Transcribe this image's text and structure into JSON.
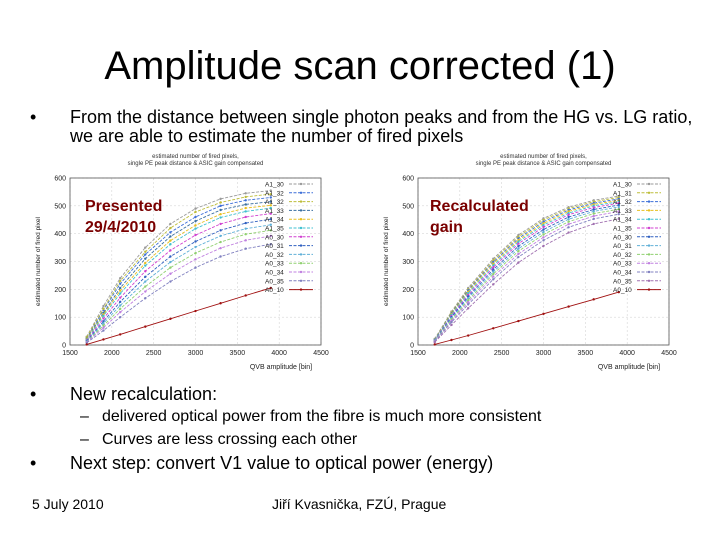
{
  "slide": {
    "title": "Amplitude scan corrected (1)",
    "bullet1": "From the distance between single photon peaks and from the HG vs. LG ratio, we are able to estimate the number of fired pixels",
    "bullet2": "New recalculation:",
    "sub1": "delivered optical power from the fibre is much more consistent",
    "sub2": "Curves are less crossing each other",
    "bullet3": "Next step: convert V1 value to optical power (energy)",
    "footer_date": "5 July 2010",
    "footer_author": "Jiří Kvasnička, FZÚ, Prague",
    "bullet_char": "•",
    "dash_char": "–"
  },
  "chart_data": [
    {
      "type": "line",
      "title": "estimated number of fired pixels, single PE peak distance & ASIC gain compensated",
      "annotation": "Presented 29/4/2010",
      "xlabel": "QVB amplitude [bin]",
      "ylabel": "estimated number of fired pixel",
      "xlim": [
        1500,
        4500
      ],
      "ylim": [
        0,
        600
      ],
      "xticks": [
        1500,
        2000,
        2500,
        3000,
        3500,
        4000,
        4500
      ],
      "yticks": [
        0,
        100,
        200,
        300,
        400,
        500,
        600
      ],
      "grid": true,
      "legend_position": "top-right",
      "series": [
        {
          "name": "A1_30",
          "color": "#9a9a9a",
          "x": [
            1700,
            1900,
            2100,
            2400,
            2700,
            3000,
            3300,
            3600,
            3900
          ],
          "y": [
            30,
            140,
            240,
            350,
            435,
            490,
            525,
            545,
            555
          ]
        },
        {
          "name": "A1_32",
          "color": "#3d6fd8",
          "x": [
            1700,
            1900,
            2100,
            2400,
            2700,
            3000,
            3300,
            3600,
            3900
          ],
          "y": [
            25,
            125,
            220,
            325,
            405,
            460,
            500,
            520,
            530
          ]
        },
        {
          "name": "A1_32",
          "color": "#bdbd3a",
          "x": [
            1700,
            1900,
            2100,
            2400,
            2700,
            3000,
            3300,
            3600,
            3900
          ],
          "y": [
            28,
            130,
            230,
            335,
            420,
            478,
            512,
            532,
            542
          ]
        },
        {
          "name": "A1_33",
          "color": "#3a6fa0",
          "x": [
            1700,
            1900,
            2100,
            2400,
            2700,
            3000,
            3300,
            3600,
            3900
          ],
          "y": [
            22,
            115,
            205,
            310,
            390,
            445,
            485,
            505,
            515
          ]
        },
        {
          "name": "A1_34",
          "color": "#e8c020",
          "x": [
            1700,
            1900,
            2100,
            2400,
            2700,
            3000,
            3300,
            3600,
            3900
          ],
          "y": [
            20,
            110,
            195,
            295,
            375,
            430,
            470,
            492,
            502
          ]
        },
        {
          "name": "A1_35",
          "color": "#40c0d0",
          "x": [
            1700,
            1900,
            2100,
            2400,
            2700,
            3000,
            3300,
            3600,
            3900
          ],
          "y": [
            18,
            105,
            185,
            285,
            362,
            418,
            458,
            480,
            492
          ]
        },
        {
          "name": "A0_30",
          "color": "#d040d0",
          "x": [
            1700,
            1900,
            2100,
            2400,
            2700,
            3000,
            3300,
            3600,
            3900
          ],
          "y": [
            16,
            95,
            170,
            265,
            340,
            395,
            435,
            460,
            472
          ]
        },
        {
          "name": "A0_31",
          "color": "#3060c0",
          "x": [
            1700,
            1900,
            2100,
            2400,
            2700,
            3000,
            3300,
            3600,
            3900
          ],
          "y": [
            14,
            85,
            155,
            245,
            318,
            372,
            412,
            438,
            452
          ]
        },
        {
          "name": "A0_32",
          "color": "#60b0d8",
          "x": [
            1700,
            1900,
            2100,
            2400,
            2700,
            3000,
            3300,
            3600,
            3900
          ],
          "y": [
            12,
            78,
            142,
            228,
            298,
            352,
            392,
            418,
            432
          ]
        },
        {
          "name": "A0_33",
          "color": "#90d070",
          "x": [
            1700,
            1900,
            2100,
            2400,
            2700,
            3000,
            3300,
            3600,
            3900
          ],
          "y": [
            11,
            70,
            130,
            210,
            278,
            330,
            370,
            398,
            412
          ]
        },
        {
          "name": "A0_34",
          "color": "#c080e0",
          "x": [
            1700,
            1900,
            2100,
            2400,
            2700,
            3000,
            3300,
            3600,
            3900
          ],
          "y": [
            10,
            62,
            118,
            192,
            256,
            308,
            348,
            376,
            392
          ]
        },
        {
          "name": "A0_35",
          "color": "#8080c0",
          "x": [
            1700,
            1900,
            2100,
            2400,
            2700,
            3000,
            3300,
            3600,
            3900
          ],
          "y": [
            8,
            52,
            100,
            168,
            228,
            278,
            318,
            346,
            362
          ]
        },
        {
          "name": "A0_10",
          "color": "#a01010",
          "x": [
            1700,
            1900,
            2100,
            2400,
            2700,
            3000,
            3300,
            3600,
            3900
          ],
          "y": [
            2,
            20,
            38,
            66,
            94,
            122,
            150,
            178,
            205
          ]
        }
      ]
    },
    {
      "type": "line",
      "title": "estimated number of fired pixels, single PE peak distance & ASIC gain compensated",
      "annotation": "Recalculated gain",
      "xlabel": "QVB amplitude [bin]",
      "ylabel": "estimated number of fired pixel",
      "xlim": [
        1500,
        4500
      ],
      "ylim": [
        0,
        600
      ],
      "xticks": [
        1500,
        2000,
        2500,
        3000,
        3500,
        4000,
        4500
      ],
      "yticks": [
        0,
        100,
        200,
        300,
        400,
        500,
        600
      ],
      "grid": true,
      "legend_position": "top-right",
      "series": [
        {
          "name": "A1_30",
          "color": "#9a9a9a",
          "x": [
            1700,
            1900,
            2100,
            2400,
            2700,
            3000,
            3300,
            3600,
            3900
          ],
          "y": [
            22,
            120,
            205,
            310,
            395,
            455,
            495,
            520,
            535
          ]
        },
        {
          "name": "A1_31",
          "color": "#bdbd3a",
          "x": [
            1700,
            1900,
            2100,
            2400,
            2700,
            3000,
            3300,
            3600,
            3900
          ],
          "y": [
            21,
            117,
            200,
            304,
            389,
            449,
            490,
            515,
            530
          ]
        },
        {
          "name": "A1_32",
          "color": "#3d6fd8",
          "x": [
            1700,
            1900,
            2100,
            2400,
            2700,
            3000,
            3300,
            3600,
            3900
          ],
          "y": [
            20,
            114,
            196,
            298,
            383,
            443,
            485,
            510,
            525
          ]
        },
        {
          "name": "A1_33",
          "color": "#e8c020",
          "x": [
            1700,
            1900,
            2100,
            2400,
            2700,
            3000,
            3300,
            3600,
            3900
          ],
          "y": [
            19,
            111,
            191,
            292,
            377,
            437,
            480,
            505,
            520
          ]
        },
        {
          "name": "A1_34",
          "color": "#40c0d0",
          "x": [
            1700,
            1900,
            2100,
            2400,
            2700,
            3000,
            3300,
            3600,
            3900
          ],
          "y": [
            18,
            108,
            186,
            286,
            371,
            431,
            474,
            500,
            515
          ]
        },
        {
          "name": "A1_35",
          "color": "#d040d0",
          "x": [
            1700,
            1900,
            2100,
            2400,
            2700,
            3000,
            3300,
            3600,
            3900
          ],
          "y": [
            17,
            104,
            180,
            279,
            364,
            424,
            468,
            494,
            510
          ]
        },
        {
          "name": "A0_30",
          "color": "#3060c0",
          "x": [
            1700,
            1900,
            2100,
            2400,
            2700,
            3000,
            3300,
            3600,
            3900
          ],
          "y": [
            16,
            100,
            174,
            271,
            355,
            415,
            460,
            487,
            503
          ]
        },
        {
          "name": "A0_31",
          "color": "#60b0d8",
          "x": [
            1700,
            1900,
            2100,
            2400,
            2700,
            3000,
            3300,
            3600,
            3900
          ],
          "y": [
            15,
            96,
            168,
            263,
            346,
            406,
            452,
            480,
            496
          ]
        },
        {
          "name": "A0_32",
          "color": "#90d070",
          "x": [
            1700,
            1900,
            2100,
            2400,
            2700,
            3000,
            3300,
            3600,
            3900
          ],
          "y": [
            14,
            92,
            161,
            255,
            337,
            397,
            443,
            472,
            488
          ]
        },
        {
          "name": "A0_33",
          "color": "#c080e0",
          "x": [
            1700,
            1900,
            2100,
            2400,
            2700,
            3000,
            3300,
            3600,
            3900
          ],
          "y": [
            13,
            87,
            154,
            246,
            327,
            387,
            434,
            463,
            480
          ]
        },
        {
          "name": "A0_34",
          "color": "#8080c0",
          "x": [
            1700,
            1900,
            2100,
            2400,
            2700,
            3000,
            3300,
            3600,
            3900
          ],
          "y": [
            12,
            82,
            146,
            236,
            316,
            376,
            423,
            453,
            470
          ]
        },
        {
          "name": "A0_35",
          "color": "#a070b0",
          "x": [
            1700,
            1900,
            2100,
            2400,
            2700,
            3000,
            3300,
            3600,
            3900
          ],
          "y": [
            10,
            72,
            132,
            218,
            296,
            356,
            404,
            435,
            453
          ]
        },
        {
          "name": "A0_10",
          "color": "#a01010",
          "x": [
            1700,
            1900,
            2100,
            2400,
            2700,
            3000,
            3300,
            3600,
            3900
          ],
          "y": [
            2,
            18,
            34,
            60,
            86,
            112,
            138,
            164,
            190
          ]
        }
      ]
    }
  ]
}
